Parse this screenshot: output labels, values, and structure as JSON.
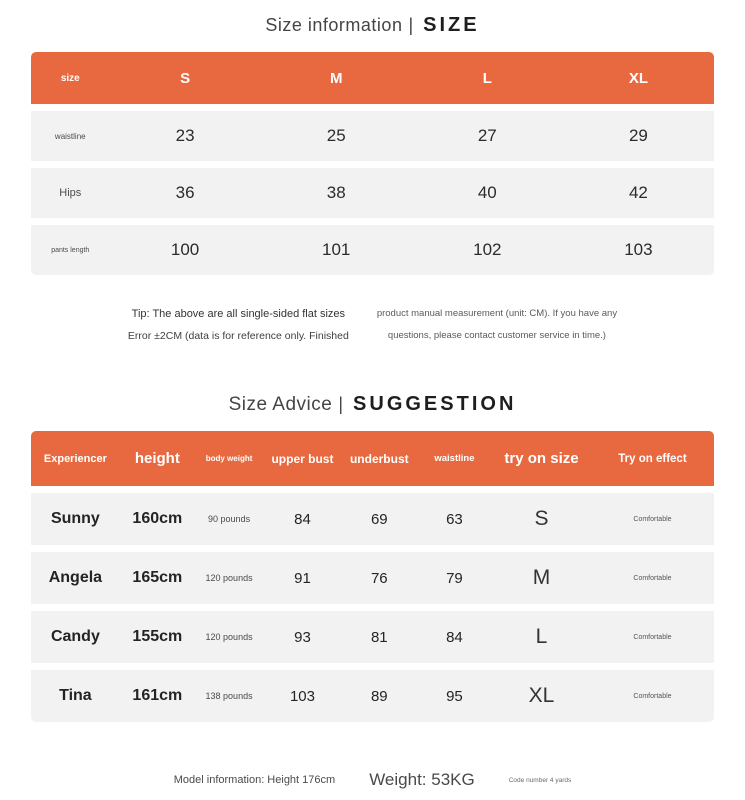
{
  "colors": {
    "accent": "#e8693f",
    "row_bg": "#f2f2f2"
  },
  "titles": {
    "size": {
      "left": "Size information",
      "divider": "|",
      "right": "SIZE"
    },
    "suggestion": {
      "left": "Size Advice",
      "divider": "|",
      "right": "SUGGESTION"
    }
  },
  "size_table": {
    "header": [
      "size",
      "S",
      "M",
      "L",
      "XL"
    ],
    "rows": [
      {
        "label": "waistline",
        "values": [
          "23",
          "25",
          "27",
          "29"
        ]
      },
      {
        "label": "Hips",
        "values": [
          "36",
          "38",
          "40",
          "42"
        ]
      },
      {
        "label": "pants length",
        "values": [
          "100",
          "101",
          "102",
          "103"
        ]
      }
    ]
  },
  "tip": {
    "left_line1": "Tip: The above are all single-sided flat sizes",
    "left_line2": "Error ±2CM (data is for reference only. Finished",
    "right_line1": "product manual measurement (unit: CM). If you have any",
    "right_line2": "questions, please contact customer service in time.)"
  },
  "suggestion_table": {
    "header": [
      "Experiencer",
      "height",
      "body weight",
      "upper bust",
      "underbust",
      "waistline",
      "try on size",
      "Try on effect"
    ],
    "rows": [
      [
        "Sunny",
        "160cm",
        "90 pounds",
        "84",
        "69",
        "63",
        "S",
        "Comfortable"
      ],
      [
        "Angela",
        "165cm",
        "120 pounds",
        "91",
        "76",
        "79",
        "M",
        "Comfortable"
      ],
      [
        "Candy",
        "155cm",
        "120 pounds",
        "93",
        "81",
        "84",
        "L",
        "Comfortable"
      ],
      [
        "Tina",
        "161cm",
        "138 pounds",
        "103",
        "89",
        "95",
        "XL",
        "Comfortable"
      ]
    ]
  },
  "footer": {
    "model_info": "Model information: Height 176cm",
    "weight": "Weight: 53KG",
    "code": "Code number 4 yards"
  }
}
